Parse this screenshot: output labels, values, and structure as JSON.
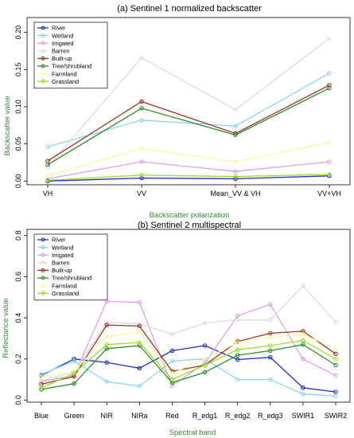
{
  "chart_data": [
    {
      "type": "line",
      "title": "(a) Sentinel 1 normalized backscatter",
      "xlabel": "Backscatter polarization",
      "ylabel": "Backscatter value",
      "categories": [
        "VH",
        "VV",
        "Mean_VV & VH",
        "VV+VH"
      ],
      "yticks": [
        "0.00",
        "0.05",
        "0.10",
        "0.15",
        "0.20"
      ],
      "ylim": [
        -0.005,
        0.22
      ],
      "legend_position": "top-left",
      "grid": false,
      "series": [
        {
          "name": "River",
          "color": "#1f2fc8",
          "values": [
            0.0,
            0.004,
            0.003,
            0.007
          ]
        },
        {
          "name": "Wetland",
          "color": "#8ad8f0",
          "values": [
            0.046,
            0.082,
            0.074,
            0.145
          ]
        },
        {
          "name": "Irrigated",
          "color": "#dca0e6",
          "values": [
            0.003,
            0.026,
            0.013,
            0.026
          ]
        },
        {
          "name": "Barren",
          "color": "#dcdcdc",
          "values": [
            0.019,
            0.166,
            0.096,
            0.192
          ]
        },
        {
          "name": "Built-up",
          "color": "#a0321e",
          "values": [
            0.027,
            0.107,
            0.064,
            0.129
          ]
        },
        {
          "name": "Tree/shrubland",
          "color": "#2e8b2e",
          "values": [
            0.022,
            0.098,
            0.062,
            0.125
          ]
        },
        {
          "name": "Farmland",
          "color": "#f8f8a0",
          "values": [
            0.007,
            0.044,
            0.026,
            0.052
          ]
        },
        {
          "name": "Grassland",
          "color": "#98e020",
          "values": [
            0.001,
            0.008,
            0.006,
            0.009
          ]
        }
      ]
    },
    {
      "type": "line",
      "title": "(b) Sentinel 2 multispectral",
      "xlabel": "Spectral band",
      "ylabel": "Reflectance value",
      "categories": [
        "Blue",
        "Green",
        "NIR",
        "NIRa",
        "Red",
        "R_edg1",
        "R_edg2",
        "R_edg3",
        "SWIR1",
        "SWIR2"
      ],
      "yticks": [
        "0.0",
        "0.2",
        "0.4",
        "0.6",
        "0.8"
      ],
      "ylim": [
        -0.01,
        0.83
      ],
      "legend_position": "top-left",
      "grid": false,
      "series": [
        {
          "name": "River",
          "color": "#1f2fc8",
          "values": [
            0.12,
            0.2,
            0.183,
            0.155,
            0.24,
            0.265,
            0.197,
            0.208,
            0.06,
            0.04
          ]
        },
        {
          "name": "Wetland",
          "color": "#8ad8f0",
          "values": [
            0.125,
            0.19,
            0.09,
            0.068,
            0.19,
            0.2,
            0.1,
            0.1,
            0.03,
            0.02
          ]
        },
        {
          "name": "Irrigated",
          "color": "#dca0e6",
          "values": [
            0.09,
            0.12,
            0.48,
            0.475,
            0.07,
            0.18,
            0.41,
            0.465,
            0.2,
            0.12
          ]
        },
        {
          "name": "Barren",
          "color": "#dcdcdc",
          "values": [
            0.095,
            0.135,
            0.38,
            0.37,
            0.32,
            0.375,
            0.39,
            0.39,
            0.555,
            0.38
          ]
        },
        {
          "name": "Built-up",
          "color": "#a0321e",
          "values": [
            0.077,
            0.115,
            0.365,
            0.36,
            0.14,
            0.17,
            0.285,
            0.325,
            0.335,
            0.225
          ]
        },
        {
          "name": "Tree/shrubland",
          "color": "#2e8b2e",
          "values": [
            0.052,
            0.08,
            0.25,
            0.265,
            0.085,
            0.135,
            0.218,
            0.24,
            0.27,
            0.17
          ]
        },
        {
          "name": "Farmland",
          "color": "#f8f8a0",
          "values": [
            0.11,
            0.14,
            0.31,
            0.33,
            0.13,
            0.2,
            0.28,
            0.305,
            0.32,
            0.25
          ]
        },
        {
          "name": "Grassland",
          "color": "#98e020",
          "values": [
            0.06,
            0.13,
            0.27,
            0.28,
            0.1,
            0.17,
            0.245,
            0.265,
            0.29,
            0.2
          ]
        }
      ]
    }
  ]
}
